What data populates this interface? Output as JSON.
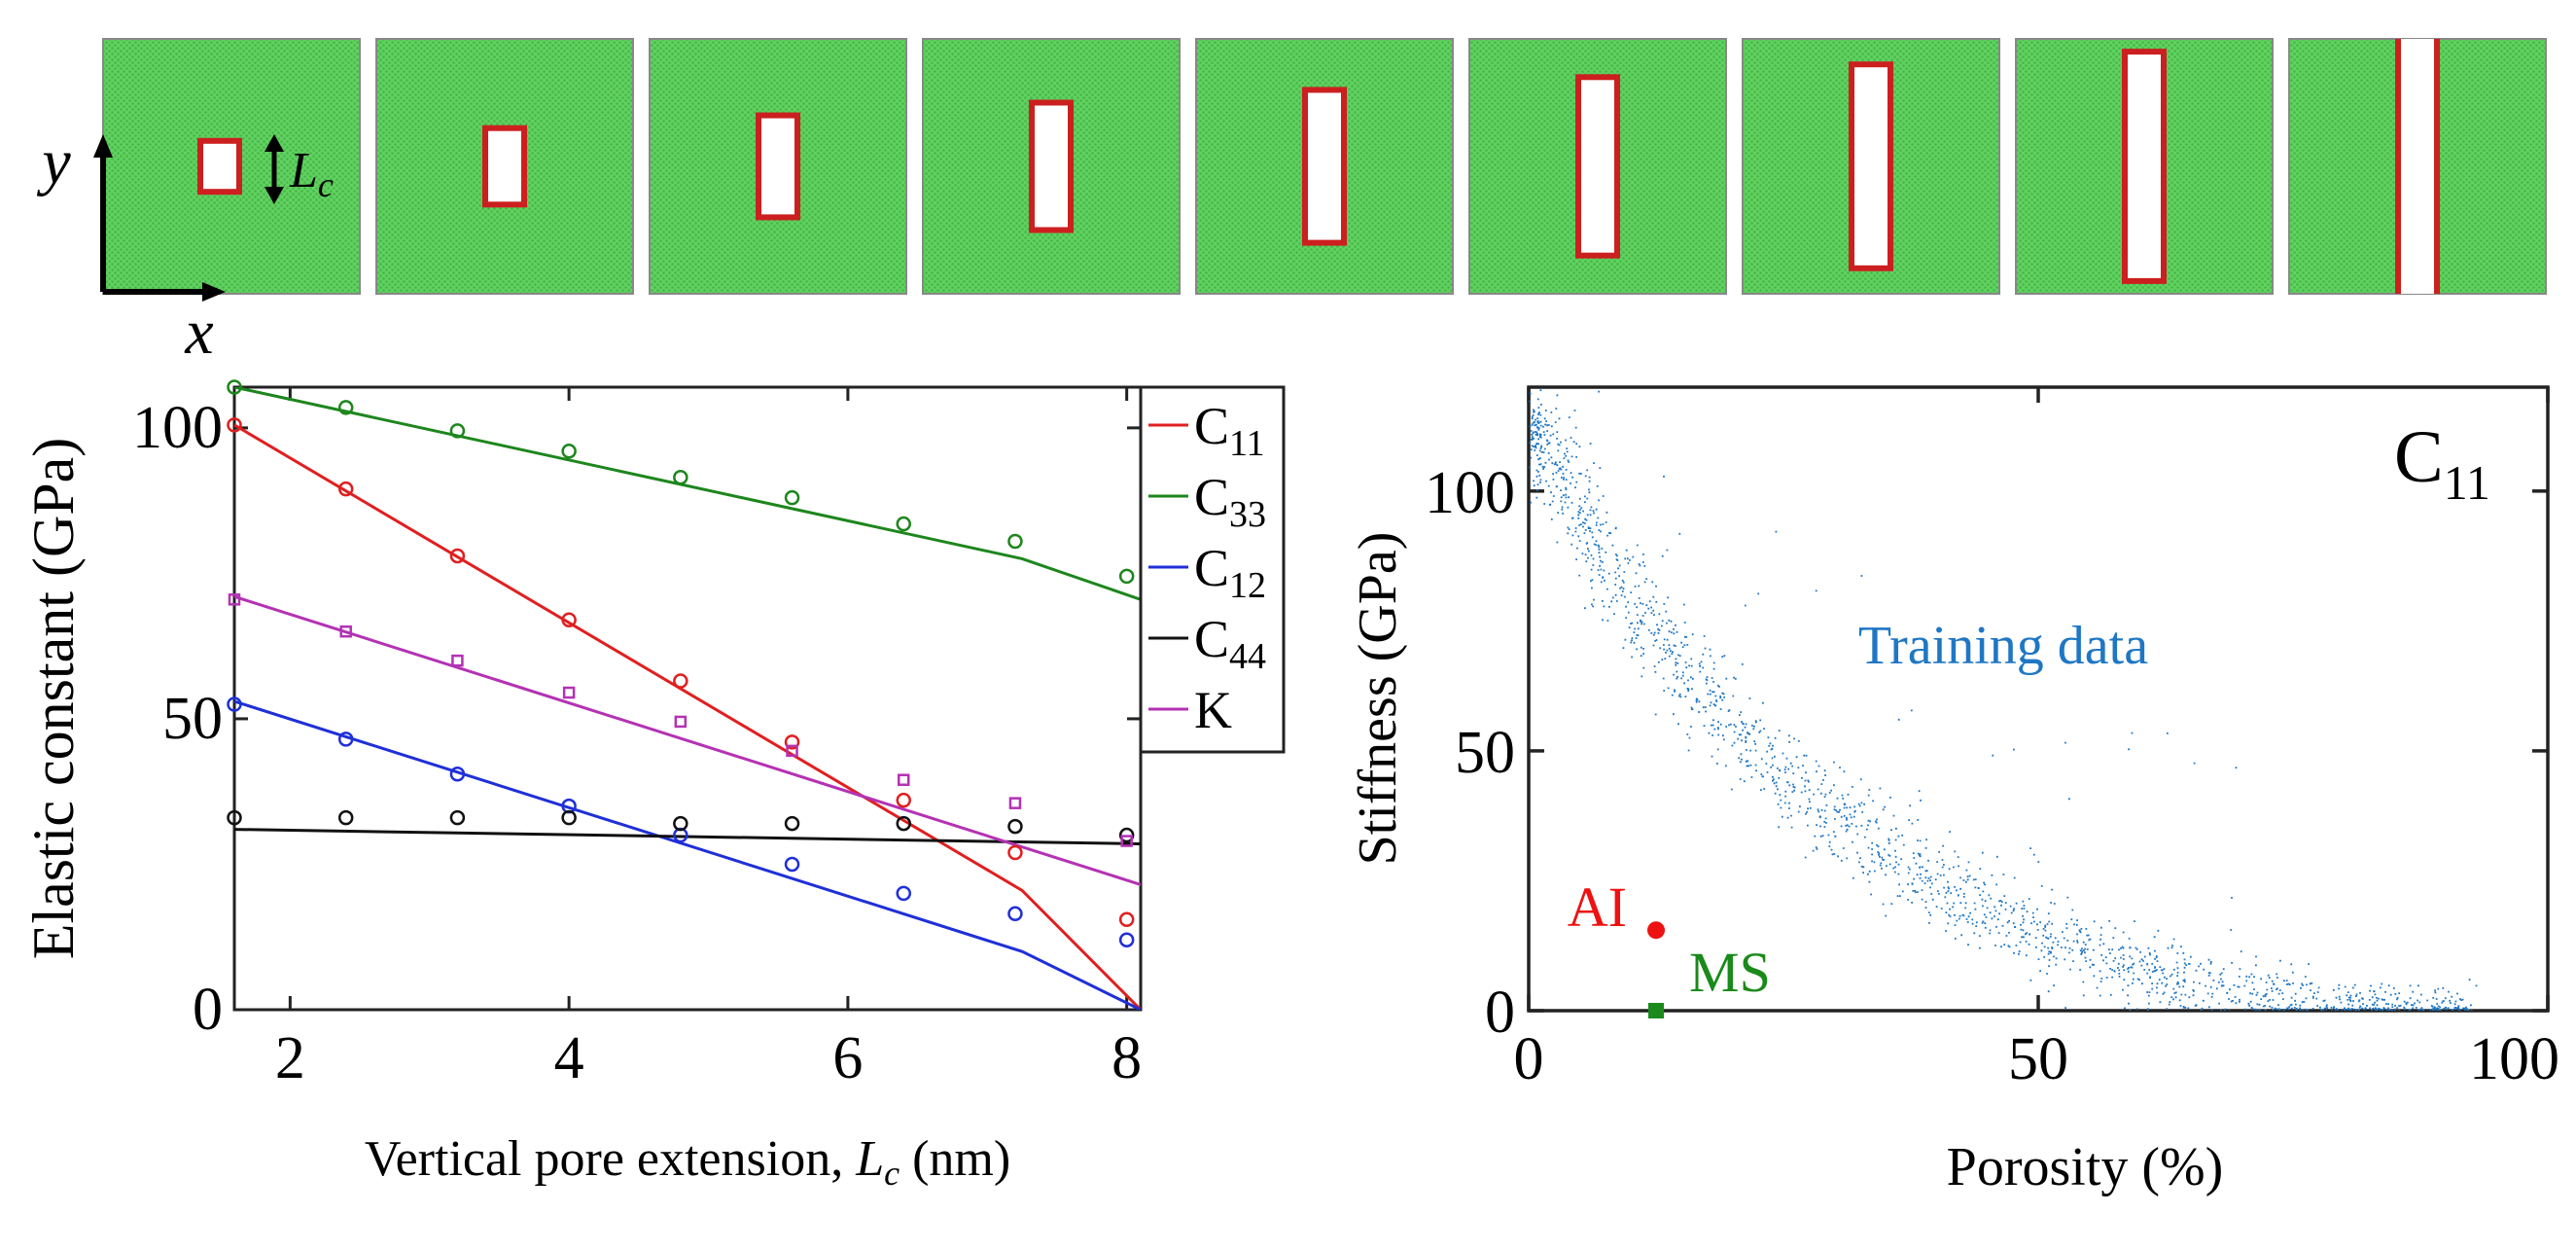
{
  "colors": {
    "lattice_green": "#61d161",
    "pore_outline": "#cc1f1f",
    "c11": "#e01f1f",
    "c33": "#1d861d",
    "c12": "#1f2fd8",
    "c44": "#111111",
    "k": "#b432b4",
    "training": "#1f77c4",
    "ai": "#ee1111",
    "ms": "#1a8a1a"
  },
  "schematic": {
    "y_axis_label": "y",
    "x_axis_label": "x",
    "dimension_label": "L",
    "dimension_subscript": "c",
    "pore_extensions_nm": [
      1.6,
      2.4,
      3.2,
      4.0,
      4.8,
      5.6,
      6.4,
      7.2,
      8.0
    ]
  },
  "chart_data": [
    {
      "type": "line",
      "xlabel": "Vertical pore extension, L_c (nm)",
      "ylabel": "Elastic constant (GPa)",
      "xlim": [
        1.6,
        8.1
      ],
      "ylim": [
        0,
        107
      ],
      "xticks": [
        2,
        4,
        6,
        8
      ],
      "yticks": [
        0,
        50,
        100
      ],
      "legend_position": "top-right",
      "x": [
        1.6,
        2.4,
        3.2,
        4.0,
        4.8,
        5.6,
        6.4,
        7.2,
        8.0
      ],
      "series": [
        {
          "name": "C11",
          "base": "C",
          "sub": "11",
          "color_key": "c11",
          "marker": "circle",
          "points": [
            100.5,
            89.5,
            78,
            67,
            56.5,
            46,
            36,
            27,
            15.5
          ],
          "line": [
            [
              1.6,
              100.5
            ],
            [
              7.25,
              20.5
            ],
            [
              8.1,
              0
            ]
          ]
        },
        {
          "name": "C33",
          "base": "C",
          "sub": "33",
          "color_key": "c33",
          "marker": "circle",
          "points": [
            107,
            103.5,
            99.5,
            96,
            91.5,
            88,
            83.5,
            80.5,
            74.5
          ],
          "line": [
            [
              1.6,
              107
            ],
            [
              7.25,
              77.5
            ],
            [
              8.1,
              70.5
            ]
          ]
        },
        {
          "name": "C12",
          "base": "C",
          "sub": "12",
          "color_key": "c12",
          "marker": "circle",
          "points": [
            52.5,
            46.5,
            40.5,
            35,
            30,
            25,
            20,
            16.5,
            12
          ],
          "line": [
            [
              1.6,
              53
            ],
            [
              7.25,
              10
            ],
            [
              8.1,
              0
            ]
          ]
        },
        {
          "name": "C44",
          "base": "C",
          "sub": "44",
          "color_key": "c44",
          "marker": "circle",
          "points": [
            33,
            33,
            33,
            33,
            32,
            32,
            32,
            31.5,
            30
          ],
          "line": [
            [
              1.6,
              31
            ],
            [
              8.1,
              28.5
            ]
          ]
        },
        {
          "name": "K",
          "base": "K",
          "sub": "",
          "color_key": "k",
          "marker": "square",
          "points": [
            70.5,
            65,
            60,
            54.5,
            49.5,
            44.5,
            39.5,
            35.5,
            29
          ],
          "line": [
            [
              1.6,
              71
            ],
            [
              8.1,
              21.5
            ]
          ]
        }
      ],
      "legend": [
        {
          "base": "C",
          "sub": "11"
        },
        {
          "base": "C",
          "sub": "33"
        },
        {
          "base": "C",
          "sub": "12"
        },
        {
          "base": "C",
          "sub": "44"
        },
        {
          "base": "K",
          "sub": ""
        }
      ]
    },
    {
      "type": "scatter",
      "xlabel": "Porosity (%)",
      "ylabel": "Stiffness (GPa)",
      "xlim": [
        0,
        100
      ],
      "ylim": [
        0,
        120
      ],
      "xticks": [
        0,
        50,
        100
      ],
      "yticks": [
        0,
        50,
        100
      ],
      "panel_label_base": "C",
      "panel_label_sub": "11",
      "training_label": "Training data",
      "training_trend": {
        "porosity": [
          0,
          5,
          10,
          15,
          20,
          25,
          30,
          35,
          40,
          45,
          50,
          55,
          60,
          65,
          70,
          75,
          80,
          85,
          90
        ],
        "stiffness": [
          114,
          95,
          79,
          66,
          55,
          46,
          38,
          31,
          25,
          19.5,
          15,
          11,
          8,
          5.5,
          3.5,
          2,
          1,
          0.5,
          0
        ]
      },
      "training_point_count": 14000,
      "annotations": [
        {
          "label": "AI",
          "porosity": 12.5,
          "stiffness": 15.5,
          "marker": "circle",
          "color_key": "ai"
        },
        {
          "label": "MS",
          "porosity": 12.5,
          "stiffness": 0,
          "marker": "square",
          "color_key": "ms"
        }
      ]
    }
  ]
}
